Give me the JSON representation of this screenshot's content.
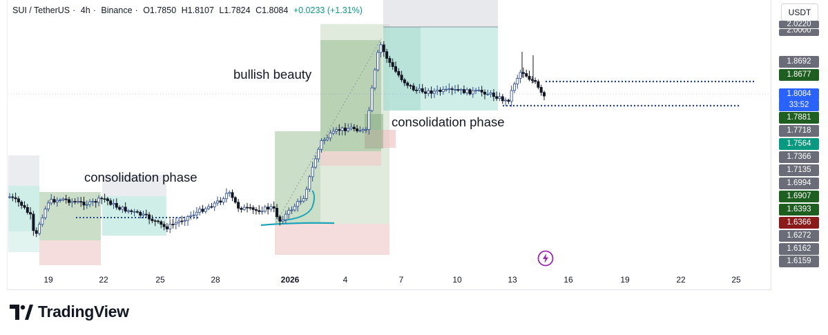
{
  "header": {
    "symbol": "SUI / TetherUS",
    "interval": "4h",
    "exchange": "Binance",
    "open": "O1.7850",
    "high": "H1.8107",
    "low": "L1.7824",
    "close": "C1.8084",
    "change": "+0.0233 (+1.31%)"
  },
  "currency": "USDT",
  "price_labels": [
    {
      "text": "2.0220",
      "color": "#6a6d78"
    },
    {
      "text": "2.0000",
      "color": "#6a6d78"
    },
    {
      "text": "1.8692",
      "color": "#6a6d78"
    },
    {
      "text": "1.8677",
      "color": "#1e5e20"
    },
    {
      "text": "1.8084",
      "color": "#2962ff"
    },
    {
      "text": "33:52",
      "color": "#2962ff"
    },
    {
      "text": "1.7881",
      "color": "#1e5e20"
    },
    {
      "text": "1.7718",
      "color": "#6a6d78"
    },
    {
      "text": "1.7564",
      "color": "#089981"
    },
    {
      "text": "1.7366",
      "color": "#6a6d78"
    },
    {
      "text": "1.7135",
      "color": "#6a6d78"
    },
    {
      "text": "1.6994",
      "color": "#6a6d78"
    },
    {
      "text": "1.6907",
      "color": "#1e5e20"
    },
    {
      "text": "1.6393",
      "color": "#1e5e20"
    },
    {
      "text": "1.6366",
      "color": "#8b1a1a"
    },
    {
      "text": "1.6272",
      "color": "#6a6d78"
    },
    {
      "text": "1.6162",
      "color": "#6a6d78"
    },
    {
      "text": "1.6159",
      "color": "#6a6d78"
    }
  ],
  "time_labels": [
    "19",
    "22",
    "25",
    "28",
    "2026",
    "4",
    "7",
    "10",
    "13",
    "16",
    "19",
    "22",
    "25"
  ],
  "annotations": {
    "consolidation_1": "consolidation phase",
    "bullish": "bullish beauty",
    "consolidation_2": "consolidation phase"
  },
  "brand": "TradingView",
  "chart_data": {
    "type": "candlestick",
    "title": "SUI / TetherUS · 4h · Binance",
    "x_ticks": [
      "19",
      "22",
      "25",
      "28",
      "2026",
      "4",
      "7",
      "10",
      "13",
      "16",
      "19",
      "22",
      "25"
    ],
    "y_ticks": [
      "1.6159",
      "1.6162",
      "1.6272",
      "1.6366",
      "1.6393",
      "1.6907",
      "1.6994",
      "1.7135",
      "1.7366",
      "1.7564",
      "1.7718",
      "1.7881",
      "1.8084",
      "1.8677",
      "1.8692",
      "2.0000",
      "2.0220"
    ],
    "last_price": 1.8084,
    "countdown": "33:52",
    "ohlc_last": {
      "open": 1.785,
      "high": 1.8107,
      "low": 1.7824,
      "close": 1.8084,
      "change": 0.0233,
      "change_pct": 1.31
    },
    "series": [
      {
        "name": "close",
        "values": [
          1.73,
          1.7,
          1.72,
          1.66,
          1.69,
          1.7,
          1.73,
          1.74,
          1.74,
          1.73,
          1.71,
          1.7,
          1.69,
          1.7,
          1.68,
          1.67,
          1.69,
          1.7,
          1.7,
          1.72,
          1.73,
          1.71,
          1.7,
          1.71,
          1.71,
          1.69,
          1.7,
          1.72,
          1.75,
          1.79,
          1.82,
          1.85,
          1.86,
          1.86,
          1.95,
          2.0,
          1.96,
          1.92,
          1.91,
          1.9,
          1.9,
          1.91,
          1.9,
          1.89,
          1.91,
          1.88,
          1.89,
          1.91,
          1.89,
          1.8084
        ]
      }
    ],
    "levels": [
      1.8677,
      1.7881
    ]
  }
}
